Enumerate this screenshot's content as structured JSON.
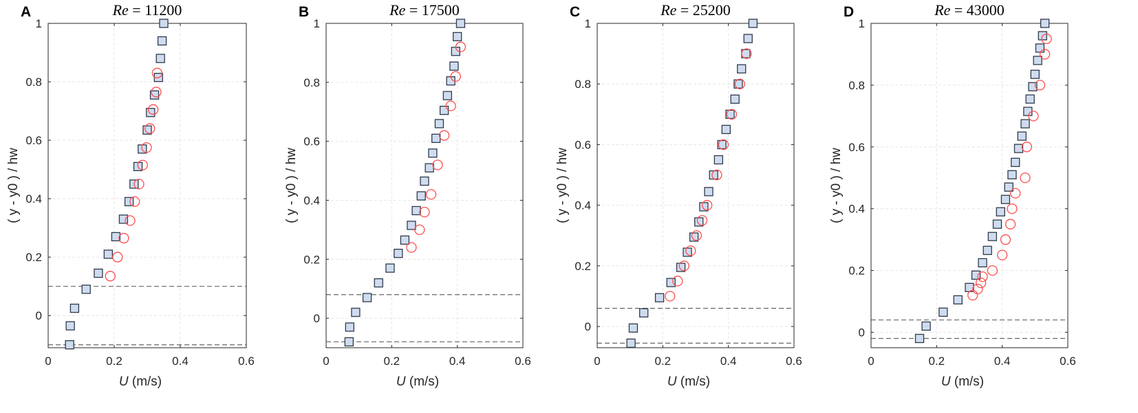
{
  "colors": {
    "square_fill": "#cfdcf0",
    "square_stroke": "#2f3a4a",
    "circle_stroke": "#ff4d4d",
    "ref_line": "#666666"
  },
  "chart_data": [
    {
      "type": "scatter",
      "panel_label": "A",
      "title_var": "Re",
      "title_rest": " = 11200",
      "xlabel_var": "U",
      "xlabel_unit": "  (m/s)",
      "ylabel": "( y - y0 ) / hw",
      "xlim": [
        0,
        0.6
      ],
      "ylim": [
        -0.11,
        1.0
      ],
      "xticks": [
        0,
        0.2,
        0.4,
        0.6
      ],
      "xtick_labels": [
        "0",
        "0.2",
        "0.4",
        "0.6"
      ],
      "yticks": [
        0,
        0.2,
        0.4,
        0.6,
        0.8,
        1.0
      ],
      "ytick_labels": [
        "0",
        "0.2",
        "0.4",
        "0.6",
        "0.8",
        "1"
      ],
      "reference_lines_y": [
        0.1,
        -0.1
      ],
      "series": [
        {
          "name": "squares",
          "marker": "square",
          "points": [
            [
              0.065,
              -0.1
            ],
            [
              0.067,
              -0.035
            ],
            [
              0.08,
              0.025
            ],
            [
              0.115,
              0.09
            ],
            [
              0.152,
              0.145
            ],
            [
              0.182,
              0.21
            ],
            [
              0.205,
              0.27
            ],
            [
              0.228,
              0.33
            ],
            [
              0.245,
              0.39
            ],
            [
              0.26,
              0.45
            ],
            [
              0.272,
              0.51
            ],
            [
              0.285,
              0.57
            ],
            [
              0.3,
              0.635
            ],
            [
              0.31,
              0.695
            ],
            [
              0.322,
              0.755
            ],
            [
              0.334,
              0.815
            ],
            [
              0.34,
              0.88
            ],
            [
              0.345,
              0.94
            ],
            [
              0.35,
              1.0
            ]
          ]
        },
        {
          "name": "circles",
          "marker": "circle",
          "points": [
            [
              0.188,
              0.135
            ],
            [
              0.21,
              0.2
            ],
            [
              0.229,
              0.265
            ],
            [
              0.248,
              0.325
            ],
            [
              0.262,
              0.39
            ],
            [
              0.275,
              0.45
            ],
            [
              0.286,
              0.515
            ],
            [
              0.298,
              0.575
            ],
            [
              0.308,
              0.64
            ],
            [
              0.318,
              0.705
            ],
            [
              0.327,
              0.765
            ],
            [
              0.33,
              0.83
            ]
          ]
        }
      ]
    },
    {
      "type": "scatter",
      "panel_label": "B",
      "title_var": "Re",
      "title_rest": " = 17500",
      "xlabel_var": "U",
      "xlabel_unit": "  (m/s)",
      "ylabel": "( y - y0 ) / hw",
      "xlim": [
        0,
        0.6
      ],
      "ylim": [
        -0.1,
        1.0
      ],
      "xticks": [
        0,
        0.2,
        0.4,
        0.6
      ],
      "xtick_labels": [
        "0",
        "0.2",
        "0.4",
        "0.6"
      ],
      "yticks": [
        0,
        0.2,
        0.4,
        0.6,
        0.8,
        1.0
      ],
      "ytick_labels": [
        "0",
        "0.2",
        "0.4",
        "0.6",
        "0.8",
        "1"
      ],
      "reference_lines_y": [
        0.08,
        -0.08
      ],
      "series": [
        {
          "name": "squares",
          "marker": "square",
          "points": [
            [
              0.07,
              -0.08
            ],
            [
              0.072,
              -0.03
            ],
            [
              0.09,
              0.02
            ],
            [
              0.125,
              0.07
            ],
            [
              0.16,
              0.12
            ],
            [
              0.195,
              0.17
            ],
            [
              0.22,
              0.22
            ],
            [
              0.24,
              0.265
            ],
            [
              0.26,
              0.315
            ],
            [
              0.275,
              0.365
            ],
            [
              0.29,
              0.415
            ],
            [
              0.3,
              0.465
            ],
            [
              0.315,
              0.51
            ],
            [
              0.325,
              0.56
            ],
            [
              0.335,
              0.61
            ],
            [
              0.345,
              0.66
            ],
            [
              0.36,
              0.705
            ],
            [
              0.37,
              0.755
            ],
            [
              0.38,
              0.805
            ],
            [
              0.39,
              0.855
            ],
            [
              0.395,
              0.905
            ],
            [
              0.4,
              0.955
            ],
            [
              0.41,
              1.0
            ]
          ]
        },
        {
          "name": "circles",
          "marker": "circle",
          "points": [
            [
              0.26,
              0.24
            ],
            [
              0.285,
              0.3
            ],
            [
              0.3,
              0.36
            ],
            [
              0.32,
              0.42
            ],
            [
              0.34,
              0.52
            ],
            [
              0.36,
              0.62
            ],
            [
              0.38,
              0.72
            ],
            [
              0.395,
              0.82
            ],
            [
              0.41,
              0.92
            ]
          ]
        }
      ]
    },
    {
      "type": "scatter",
      "panel_label": "C",
      "title_var": "Re",
      "title_rest": " = 25200",
      "xlabel_var": "U",
      "xlabel_unit": "  (m/s)",
      "ylabel": "( y - y0 ) / hw",
      "xlim": [
        0,
        0.6
      ],
      "ylim": [
        -0.07,
        1.0
      ],
      "xticks": [
        0,
        0.2,
        0.4,
        0.6
      ],
      "xtick_labels": [
        "0",
        "0.2",
        "0.4",
        "0.6"
      ],
      "yticks": [
        0,
        0.2,
        0.4,
        0.6,
        0.8,
        1.0
      ],
      "ytick_labels": [
        "0",
        "0.2",
        "0.4",
        "0.6",
        "0.8",
        "1"
      ],
      "reference_lines_y": [
        0.06,
        -0.055
      ],
      "series": [
        {
          "name": "squares",
          "marker": "square",
          "points": [
            [
              0.103,
              -0.055
            ],
            [
              0.11,
              -0.005
            ],
            [
              0.142,
              0.045
            ],
            [
              0.19,
              0.095
            ],
            [
              0.225,
              0.145
            ],
            [
              0.255,
              0.195
            ],
            [
              0.275,
              0.245
            ],
            [
              0.295,
              0.295
            ],
            [
              0.31,
              0.345
            ],
            [
              0.325,
              0.395
            ],
            [
              0.34,
              0.445
            ],
            [
              0.355,
              0.5
            ],
            [
              0.37,
              0.55
            ],
            [
              0.38,
              0.6
            ],
            [
              0.393,
              0.65
            ],
            [
              0.405,
              0.7
            ],
            [
              0.42,
              0.75
            ],
            [
              0.43,
              0.8
            ],
            [
              0.44,
              0.85
            ],
            [
              0.453,
              0.9
            ],
            [
              0.46,
              0.95
            ],
            [
              0.475,
              1.0
            ]
          ]
        },
        {
          "name": "circles",
          "marker": "circle",
          "points": [
            [
              0.222,
              0.1
            ],
            [
              0.245,
              0.15
            ],
            [
              0.265,
              0.2
            ],
            [
              0.285,
              0.25
            ],
            [
              0.303,
              0.3
            ],
            [
              0.32,
              0.35
            ],
            [
              0.335,
              0.4
            ],
            [
              0.365,
              0.5
            ],
            [
              0.385,
              0.6
            ],
            [
              0.41,
              0.7
            ],
            [
              0.435,
              0.8
            ],
            [
              0.455,
              0.9
            ]
          ]
        }
      ]
    },
    {
      "type": "scatter",
      "panel_label": "D",
      "title_var": "Re",
      "title_rest": " = 43000",
      "xlabel_var": "U",
      "xlabel_unit": "  (m/s)",
      "ylabel": "( y - y0 ) / hw",
      "xlim": [
        0,
        0.6
      ],
      "ylim": [
        -0.05,
        1.0
      ],
      "xticks": [
        0,
        0.2,
        0.4,
        0.6
      ],
      "xtick_labels": [
        "0",
        "0.2",
        "0.4",
        "0.6"
      ],
      "yticks": [
        0,
        0.2,
        0.4,
        0.6,
        0.8,
        1.0
      ],
      "ytick_labels": [
        "0",
        "0.2",
        "0.4",
        "0.6",
        "0.8",
        "1"
      ],
      "reference_lines_y": [
        0.04,
        -0.02
      ],
      "series": [
        {
          "name": "squares",
          "marker": "square",
          "points": [
            [
              0.148,
              -0.02
            ],
            [
              0.168,
              0.02
            ],
            [
              0.22,
              0.065
            ],
            [
              0.265,
              0.105
            ],
            [
              0.3,
              0.145
            ],
            [
              0.32,
              0.185
            ],
            [
              0.34,
              0.225
            ],
            [
              0.355,
              0.265
            ],
            [
              0.37,
              0.31
            ],
            [
              0.385,
              0.35
            ],
            [
              0.395,
              0.39
            ],
            [
              0.41,
              0.43
            ],
            [
              0.42,
              0.47
            ],
            [
              0.43,
              0.51
            ],
            [
              0.44,
              0.55
            ],
            [
              0.45,
              0.595
            ],
            [
              0.46,
              0.635
            ],
            [
              0.47,
              0.675
            ],
            [
              0.478,
              0.715
            ],
            [
              0.485,
              0.755
            ],
            [
              0.493,
              0.795
            ],
            [
              0.5,
              0.835
            ],
            [
              0.508,
              0.88
            ],
            [
              0.515,
              0.92
            ],
            [
              0.523,
              0.96
            ],
            [
              0.53,
              1.0
            ]
          ]
        },
        {
          "name": "circles",
          "marker": "circle",
          "points": [
            [
              0.31,
              0.12
            ],
            [
              0.325,
              0.14
            ],
            [
              0.335,
              0.16
            ],
            [
              0.34,
              0.18
            ],
            [
              0.37,
              0.2
            ],
            [
              0.4,
              0.25
            ],
            [
              0.41,
              0.3
            ],
            [
              0.425,
              0.35
            ],
            [
              0.43,
              0.4
            ],
            [
              0.44,
              0.45
            ],
            [
              0.47,
              0.5
            ],
            [
              0.475,
              0.6
            ],
            [
              0.495,
              0.7
            ],
            [
              0.515,
              0.8
            ],
            [
              0.53,
              0.9
            ],
            [
              0.535,
              0.95
            ]
          ]
        }
      ]
    }
  ]
}
